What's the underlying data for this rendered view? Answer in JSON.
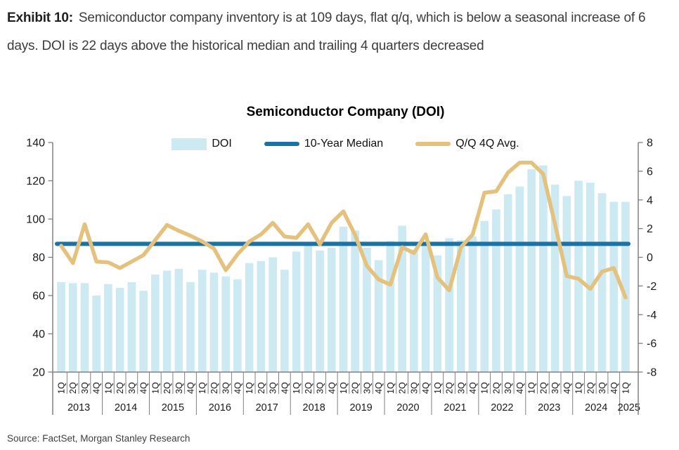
{
  "header": {
    "exhibit_label": "Exhibit 10:",
    "description": "Semiconductor company inventory is at 109 days, flat q/q, which is below a seasonal increase of 6 days. DOI is 22 days above the historical median and trailing 4 quarters decreased"
  },
  "source": "Source: FactSet, Morgan Stanley Research",
  "chart_data": {
    "type": "bar",
    "title": "Semiconductor Company (DOI)",
    "left_axis": {
      "min": 20,
      "max": 140,
      "ticks": [
        140,
        120,
        100,
        80,
        60,
        40,
        20
      ]
    },
    "right_axis": {
      "min": -8,
      "max": 8,
      "ticks": [
        8,
        6,
        4,
        2,
        0,
        -2,
        -4,
        -6,
        -8
      ]
    },
    "years": [
      {
        "label": "2013",
        "quarters": [
          "1Q",
          "2Q",
          "3Q",
          "4Q"
        ]
      },
      {
        "label": "2014",
        "quarters": [
          "1Q",
          "2Q",
          "3Q",
          "4Q"
        ]
      },
      {
        "label": "2015",
        "quarters": [
          "1Q",
          "2Q",
          "3Q",
          "4Q"
        ]
      },
      {
        "label": "2016",
        "quarters": [
          "1Q",
          "2Q",
          "3Q",
          "4Q"
        ]
      },
      {
        "label": "2017",
        "quarters": [
          "1Q",
          "2Q",
          "3Q",
          "4Q"
        ]
      },
      {
        "label": "2018",
        "quarters": [
          "1Q",
          "2Q",
          "3Q",
          "4Q"
        ]
      },
      {
        "label": "2019",
        "quarters": [
          "1Q",
          "2Q",
          "3Q",
          "4Q"
        ]
      },
      {
        "label": "2020",
        "quarters": [
          "1Q",
          "2Q",
          "3Q",
          "4Q"
        ]
      },
      {
        "label": "2021",
        "quarters": [
          "1Q",
          "2Q",
          "3Q",
          "4Q"
        ]
      },
      {
        "label": "2022",
        "quarters": [
          "1Q",
          "2Q",
          "3Q",
          "4Q"
        ]
      },
      {
        "label": "2023",
        "quarters": [
          "1Q",
          "2Q",
          "3Q",
          "4Q"
        ]
      },
      {
        "label": "2024",
        "quarters": [
          "1Q",
          "2Q",
          "3Q",
          "4Q"
        ]
      },
      {
        "label": "2025",
        "quarters": [
          "1Q"
        ]
      }
    ],
    "series": [
      {
        "name": "DOI",
        "type": "bar",
        "axis": "left",
        "color": "#cde9f2",
        "values": [
          67,
          66.5,
          66.5,
          60,
          66,
          64,
          67,
          62.5,
          71,
          73,
          74,
          67,
          73.5,
          72,
          70,
          68.5,
          77,
          78,
          80,
          73.5,
          83,
          86,
          83.5,
          85,
          96,
          94,
          85,
          78.5,
          88.5,
          96.5,
          84,
          86,
          81,
          90,
          89,
          91,
          99,
          105,
          113,
          117,
          126,
          128,
          118,
          112,
          120,
          119,
          113.5,
          109,
          109
        ]
      },
      {
        "name": "10-Year Median",
        "type": "hline",
        "axis": "left",
        "color": "#1b72a5",
        "value": 87
      },
      {
        "name": "Q/Q 4Q Avg.",
        "type": "line",
        "axis": "right",
        "color": "#e4c27e",
        "values": [
          0.8,
          -0.4,
          2.3,
          -0.3,
          -0.35,
          -0.75,
          -0.3,
          0.15,
          1.2,
          2.25,
          1.85,
          1.5,
          1.1,
          0.6,
          -0.9,
          0.2,
          1.1,
          1.6,
          2.4,
          1.45,
          1.35,
          2.3,
          0.9,
          2.4,
          3.2,
          1.55,
          -0.6,
          -1.55,
          -1.9,
          0.7,
          0.3,
          1.6,
          -1.4,
          -2.3,
          0.7,
          1.6,
          4.5,
          4.6,
          5.9,
          6.6,
          6.6,
          5.8,
          2.3,
          -1.3,
          -1.5,
          -2.2,
          -1.0,
          -0.75,
          -2.8
        ]
      }
    ],
    "axis_color": "#808080",
    "text_color": "#1a1a1a"
  }
}
